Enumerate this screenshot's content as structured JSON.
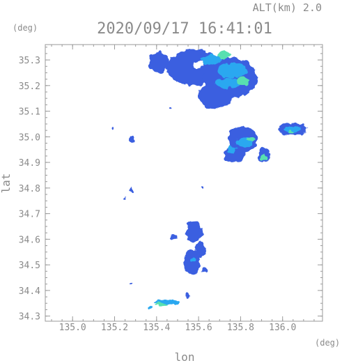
{
  "header": {
    "altitude_label": "ALT(km) 2.0",
    "timestamp": "2020/09/17 16:41:01"
  },
  "chart_data": {
    "type": "heatmap",
    "xlabel": "lon",
    "ylabel": "lat",
    "x_unit": "(deg)",
    "y_unit": "(deg)",
    "xlim": [
      134.87,
      136.19
    ],
    "ylim": [
      34.28,
      35.36
    ],
    "x_ticks": [
      135.0,
      135.2,
      135.4,
      135.6,
      135.8,
      136.0
    ],
    "x_tick_labels": [
      "135.0",
      "135.2",
      "135.4",
      "135.6",
      "135.8",
      "136.0"
    ],
    "y_ticks": [
      34.3,
      34.4,
      34.5,
      34.6,
      34.7,
      34.8,
      34.9,
      35.0,
      35.1,
      35.2,
      35.3
    ],
    "y_tick_labels": [
      "34.3",
      "34.4",
      "34.5",
      "34.6",
      "34.7",
      "34.8",
      "34.9",
      "35.0",
      "35.1",
      "35.2",
      "35.3"
    ],
    "colors": {
      "weak": "#3a5fe0",
      "moderate": "#2aa8f0",
      "strong": "#58e0b0",
      "axis": "#9a9a9a"
    },
    "echo_cells": [
      {
        "lon": 135.58,
        "lat": 35.27,
        "rlon": 0.13,
        "rlat": 0.07,
        "intensity": "weak"
      },
      {
        "lon": 135.75,
        "lat": 35.23,
        "rlon": 0.13,
        "rlat": 0.08,
        "intensity": "weak"
      },
      {
        "lon": 135.68,
        "lat": 35.16,
        "rlon": 0.08,
        "rlat": 0.05,
        "intensity": "weak"
      },
      {
        "lon": 135.41,
        "lat": 35.29,
        "rlon": 0.05,
        "rlat": 0.04,
        "intensity": "weak"
      },
      {
        "lon": 135.76,
        "lat": 35.26,
        "rlon": 0.07,
        "rlat": 0.03,
        "intensity": "moderate"
      },
      {
        "lon": 135.74,
        "lat": 35.21,
        "rlon": 0.06,
        "rlat": 0.02,
        "intensity": "moderate"
      },
      {
        "lon": 135.66,
        "lat": 35.3,
        "rlon": 0.05,
        "rlat": 0.02,
        "intensity": "moderate"
      },
      {
        "lon": 135.72,
        "lat": 35.32,
        "rlon": 0.03,
        "rlat": 0.015,
        "intensity": "strong"
      },
      {
        "lon": 135.81,
        "lat": 35.22,
        "rlon": 0.03,
        "rlat": 0.015,
        "intensity": "strong"
      },
      {
        "lon": 135.6,
        "lat": 35.28,
        "rlon": 0.025,
        "rlat": 0.015,
        "intensity": "white"
      },
      {
        "lon": 135.81,
        "lat": 34.99,
        "rlon": 0.07,
        "rlat": 0.05,
        "intensity": "weak"
      },
      {
        "lon": 135.77,
        "lat": 34.93,
        "rlon": 0.05,
        "rlat": 0.03,
        "intensity": "weak"
      },
      {
        "lon": 135.91,
        "lat": 34.93,
        "rlon": 0.03,
        "rlat": 0.03,
        "intensity": "weak"
      },
      {
        "lon": 135.82,
        "lat": 34.98,
        "rlon": 0.04,
        "rlat": 0.02,
        "intensity": "moderate"
      },
      {
        "lon": 135.76,
        "lat": 34.95,
        "rlon": 0.02,
        "rlat": 0.015,
        "intensity": "moderate"
      },
      {
        "lon": 135.91,
        "lat": 34.92,
        "rlon": 0.015,
        "rlat": 0.012,
        "intensity": "strong"
      },
      {
        "lon": 135.85,
        "lat": 34.99,
        "rlon": 0.02,
        "rlat": 0.01,
        "intensity": "strong"
      },
      {
        "lon": 136.05,
        "lat": 35.03,
        "rlon": 0.07,
        "rlat": 0.025,
        "intensity": "weak"
      },
      {
        "lon": 136.05,
        "lat": 35.03,
        "rlon": 0.04,
        "rlat": 0.012,
        "intensity": "moderate"
      },
      {
        "lon": 136.04,
        "lat": 35.02,
        "rlon": 0.012,
        "rlat": 0.008,
        "intensity": "strong"
      },
      {
        "lon": 135.28,
        "lat": 34.99,
        "rlon": 0.012,
        "rlat": 0.012,
        "intensity": "weak"
      },
      {
        "lon": 135.28,
        "lat": 34.79,
        "rlon": 0.01,
        "rlat": 0.01,
        "intensity": "weak"
      },
      {
        "lon": 135.25,
        "lat": 34.76,
        "rlon": 0.006,
        "rlat": 0.005,
        "intensity": "weak"
      },
      {
        "lon": 135.58,
        "lat": 34.63,
        "rlon": 0.04,
        "rlat": 0.04,
        "intensity": "weak"
      },
      {
        "lon": 135.57,
        "lat": 34.51,
        "rlon": 0.04,
        "rlat": 0.05,
        "intensity": "weak"
      },
      {
        "lon": 135.61,
        "lat": 34.56,
        "rlon": 0.025,
        "rlat": 0.03,
        "intensity": "weak"
      },
      {
        "lon": 135.48,
        "lat": 34.61,
        "rlon": 0.015,
        "rlat": 0.01,
        "intensity": "weak"
      },
      {
        "lon": 135.57,
        "lat": 34.52,
        "rlon": 0.012,
        "rlat": 0.01,
        "intensity": "moderate"
      },
      {
        "lon": 135.63,
        "lat": 34.48,
        "rlon": 0.015,
        "rlat": 0.01,
        "intensity": "weak"
      },
      {
        "lon": 135.28,
        "lat": 34.43,
        "rlon": 0.006,
        "rlat": 0.005,
        "intensity": "weak"
      },
      {
        "lon": 135.55,
        "lat": 34.38,
        "rlon": 0.012,
        "rlat": 0.008,
        "intensity": "weak"
      },
      {
        "lon": 135.45,
        "lat": 34.355,
        "rlon": 0.06,
        "rlat": 0.008,
        "intensity": "moderate"
      },
      {
        "lon": 135.42,
        "lat": 34.345,
        "rlon": 0.025,
        "rlat": 0.006,
        "intensity": "strong"
      },
      {
        "lon": 135.37,
        "lat": 34.335,
        "rlon": 0.012,
        "rlat": 0.005,
        "intensity": "moderate"
      },
      {
        "lon": 135.47,
        "lat": 35.11,
        "rlon": 0.004,
        "rlat": 0.004,
        "intensity": "weak"
      },
      {
        "lon": 135.19,
        "lat": 35.03,
        "rlon": 0.003,
        "rlat": 0.003,
        "intensity": "weak"
      },
      {
        "lon": 135.62,
        "lat": 34.8,
        "rlon": 0.004,
        "rlat": 0.004,
        "intensity": "weak"
      }
    ]
  }
}
